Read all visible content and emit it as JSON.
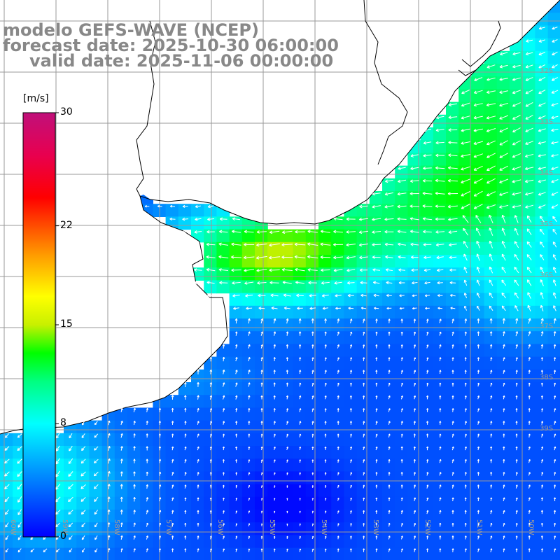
{
  "header": {
    "line1": "modelo GEFS-WAVE (NCEP)",
    "line2": "forecast date: 2025-10-30 06:00:00",
    "line3": "valid date: 2025-11-06 00:00:00"
  },
  "colorbar": {
    "unit": "[m/s]",
    "ticks": [
      {
        "label": "30",
        "value": 30
      },
      {
        "label": "22",
        "value": 22
      },
      {
        "label": "15",
        "value": 15
      },
      {
        "label": "8",
        "value": 8
      },
      {
        "label": "0",
        "value": 0
      }
    ],
    "stops": [
      {
        "value": 0,
        "color": "#0000ff"
      },
      {
        "value": 4,
        "color": "#0080ff"
      },
      {
        "value": 8,
        "color": "#00ffff"
      },
      {
        "value": 11,
        "color": "#00ff80"
      },
      {
        "value": 13,
        "color": "#00ff00"
      },
      {
        "value": 15,
        "color": "#c8f000"
      },
      {
        "value": 17,
        "color": "#ffff00"
      },
      {
        "value": 20,
        "color": "#ff9900"
      },
      {
        "value": 24,
        "color": "#ff0000"
      },
      {
        "value": 27,
        "color": "#e8004f"
      },
      {
        "value": 30,
        "color": "#c0107a"
      }
    ]
  },
  "grid": {
    "lat_labels": [
      "32S",
      "33S",
      "34S",
      "35S",
      "36S",
      "37S",
      "38S",
      "39S"
    ],
    "lon_labels": [
      "60W",
      "59W",
      "58W",
      "57W",
      "56W",
      "55W",
      "54W",
      "53W",
      "52W",
      "51W",
      "50W"
    ]
  },
  "colors": {
    "background": "#ffffff",
    "land": "#ffffff",
    "coastline": "#000000",
    "gridline": "#999999",
    "arrow": "#ffffff",
    "title": "#888888"
  },
  "wind_field": {
    "description_units": "m/s",
    "regions": [
      {
        "lat_range": "31S-33S",
        "lon_range": "52W-50W",
        "speed": 12,
        "direction": "from northeast"
      },
      {
        "lat_range": "33S-35S",
        "lon_range": "54W-50W",
        "speed": 11,
        "direction": "from east"
      },
      {
        "lat_range": "34.8S-36.3S",
        "lon_range": "57.5W-53W",
        "speed": 13,
        "direction": "from east"
      },
      {
        "lat_range": "35.5S-37S",
        "lon_range": "53W-50W",
        "speed": 8,
        "direction": "from southeast"
      },
      {
        "lat_range": "37S-39S",
        "lon_range": "57W-50W",
        "speed": 5,
        "direction": "from south"
      },
      {
        "lat_range": "39S-40S",
        "lon_range": "57W-55W",
        "speed": 2,
        "direction": "variable"
      },
      {
        "lat_range": "38.5S-40S",
        "lon_range": "61W-58W",
        "speed": 7,
        "direction": "from northeast"
      }
    ]
  }
}
